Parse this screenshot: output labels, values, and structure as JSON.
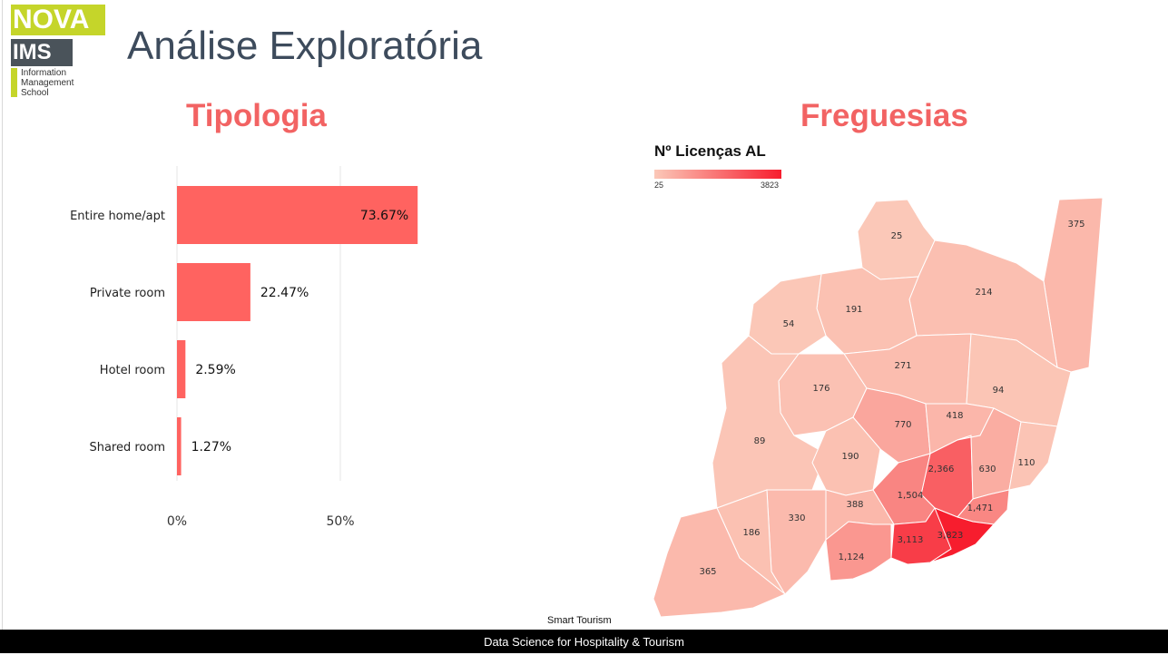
{
  "logo": {
    "top": "NOVA",
    "middle": "IMS",
    "line1": "Information",
    "line2": "Management",
    "line3": "School"
  },
  "page_title": "Análise Exploratória",
  "sections": {
    "left": "Tipologia",
    "right": "Freguesias"
  },
  "chart_data": {
    "type": "bar",
    "orientation": "horizontal",
    "categories": [
      "Entire home/apt",
      "Private room",
      "Hotel room",
      "Shared room"
    ],
    "values": [
      73.67,
      22.47,
      2.59,
      1.27
    ],
    "data_labels": [
      "73.67%",
      "22.47%",
      "2.59%",
      "1.27%"
    ],
    "x_ticks": [
      "0%",
      "50%"
    ],
    "xlim": [
      0,
      100
    ],
    "grid": true,
    "bar_color": "#ff6360"
  },
  "map_legend": {
    "title": "Nº Licenças AL",
    "min": "25",
    "max": "3823",
    "min_value": 25,
    "max_value": 3823,
    "color_low": "#fbc8b8",
    "color_high": "#f71d2e"
  },
  "map_regions": [
    {
      "label": "25",
      "value": 25
    },
    {
      "label": "375",
      "value": 375
    },
    {
      "label": "214",
      "value": 214
    },
    {
      "label": "191",
      "value": 191
    },
    {
      "label": "54",
      "value": 54
    },
    {
      "label": "271",
      "value": 271
    },
    {
      "label": "176",
      "value": 176
    },
    {
      "label": "94",
      "value": 94
    },
    {
      "label": "770",
      "value": 770
    },
    {
      "label": "418",
      "value": 418
    },
    {
      "label": "89",
      "value": 89
    },
    {
      "label": "190",
      "value": 190
    },
    {
      "label": "2,366",
      "value": 2366
    },
    {
      "label": "630",
      "value": 630
    },
    {
      "label": "110",
      "value": 110
    },
    {
      "label": "1,504",
      "value": 1504
    },
    {
      "label": "388",
      "value": 388
    },
    {
      "label": "1,471",
      "value": 1471
    },
    {
      "label": "330",
      "value": 330
    },
    {
      "label": "186",
      "value": 186
    },
    {
      "label": "3,113",
      "value": 3113
    },
    {
      "label": "3,823",
      "value": 3823
    },
    {
      "label": "1,124",
      "value": 1124
    },
    {
      "label": "365",
      "value": 365
    }
  ],
  "footer": {
    "caption": "Smart Tourism",
    "text": "Data Science for Hospitality & Tourism"
  }
}
